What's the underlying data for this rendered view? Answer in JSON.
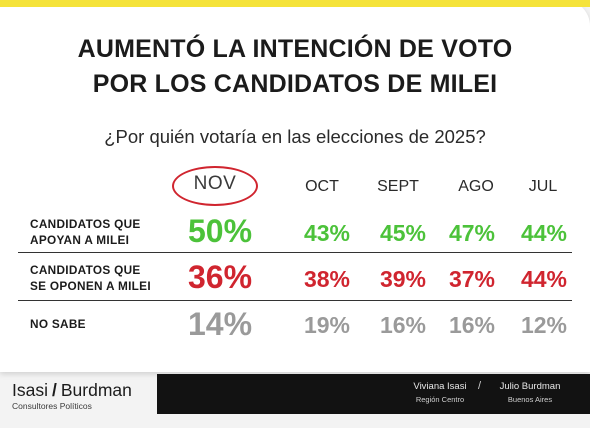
{
  "title_line1": "AUMENTÓ LA INTENCIÓN DE VOTO",
  "title_line2": "POR LOS CANDIDATOS DE MILEI",
  "subtitle": "¿Por quién votaría en las elecciones de 2025?",
  "colors": {
    "accent_bar": "#f5e33a",
    "support": "#4cc23a",
    "oppose": "#d0252f",
    "unsure": "#9a9a9a",
    "footer_bg": "#121212"
  },
  "chart_data": {
    "type": "table",
    "title": "AUMENTÓ LA INTENCIÓN DE VOTO POR LOS CANDIDATOS DE MILEI",
    "subtitle": "¿Por quién votaría en las elecciones de 2025?",
    "categories": [
      "NOV",
      "OCT",
      "SEPT",
      "AGO",
      "JUL"
    ],
    "highlight_category": "NOV",
    "series": [
      {
        "name_line1": "CANDIDATOS QUE",
        "name_line2": "APOYAN A MILEI",
        "labels": [
          "50%",
          "43%",
          "45%",
          "47%",
          "44%"
        ],
        "values": [
          50,
          43,
          45,
          47,
          44
        ],
        "color": "#4cc23a"
      },
      {
        "name_line1": "CANDIDATOS QUE",
        "name_line2": "SE OPONEN A MILEI",
        "labels": [
          "36%",
          "38%",
          "39%",
          "37%",
          "44%"
        ],
        "values": [
          36,
          38,
          39,
          37,
          44
        ],
        "color": "#d0252f"
      },
      {
        "name_line1": "NO SABE",
        "name_line2": "",
        "labels": [
          "14%",
          "19%",
          "16%",
          "16%",
          "12%"
        ],
        "values": [
          14,
          19,
          16,
          16,
          12
        ],
        "color": "#9a9a9a"
      }
    ]
  },
  "footer": {
    "logo_left": "Isasi",
    "logo_slash": "/",
    "logo_right": "Burdman",
    "logo_sub": "Consultores Políticos",
    "person1_name": "Viviana Isasi",
    "person1_region": "Región Centro",
    "separator": "/",
    "person2_name": "Julio Burdman",
    "person2_region": "Buenos Aires"
  }
}
